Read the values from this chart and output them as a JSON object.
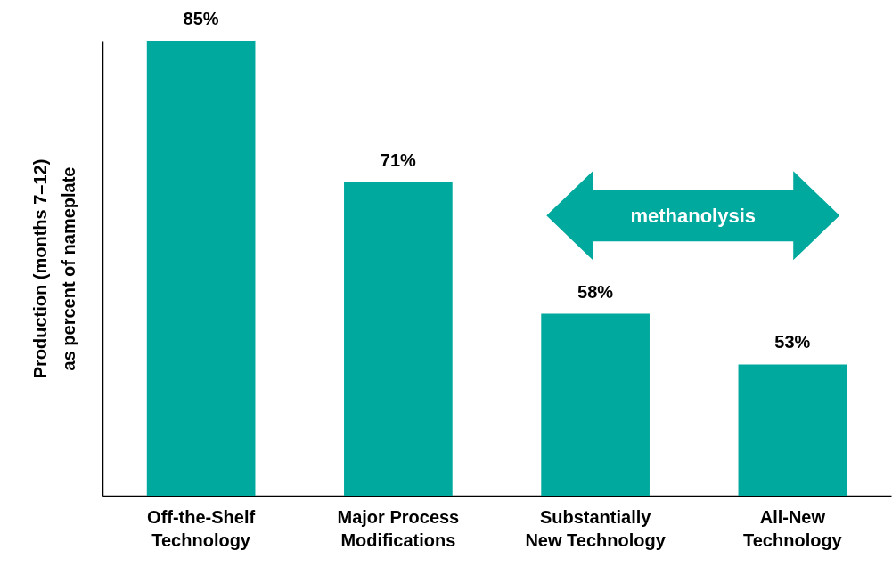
{
  "chart_data": {
    "type": "bar",
    "ylabel": "Production (months 7–12)\nas percent of nameplate",
    "categories": [
      "Off-the-Shelf\nTechnology",
      "Major Process\nModifications",
      "Substantially\nNew Technology",
      "All-New\nTechnology"
    ],
    "values": [
      85,
      71,
      58,
      53
    ],
    "value_labels": [
      "85%",
      "71%",
      "58%",
      "53%"
    ],
    "color": "#00a99d",
    "ylim": [
      40,
      85
    ],
    "tick_labels": "x",
    "annotations": [
      "methanolysis"
    ]
  }
}
